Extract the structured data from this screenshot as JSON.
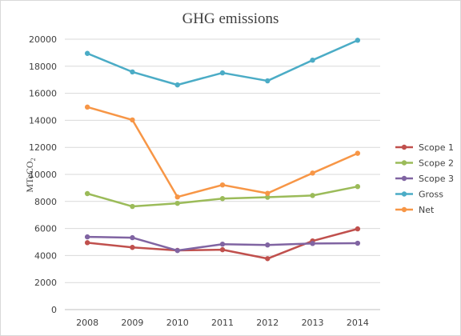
{
  "chart_data": {
    "type": "line",
    "title": "GHG emissions",
    "ylabel_main": "MTeCO",
    "ylabel_sub": "2",
    "xlabel": "",
    "ylim": [
      0,
      20000
    ],
    "yticks": [
      0,
      2000,
      4000,
      6000,
      8000,
      10000,
      12000,
      14000,
      16000,
      18000,
      20000
    ],
    "categories": [
      "2008",
      "2009",
      "2010",
      "2011",
      "2012",
      "2013",
      "2014"
    ],
    "grid": true,
    "legend_position": "right",
    "series": [
      {
        "name": "Scope 1",
        "color": "#c0504d",
        "values": [
          4950,
          4600,
          4380,
          4430,
          3770,
          5080,
          5970
        ]
      },
      {
        "name": "Scope 2",
        "color": "#9bbb59",
        "values": [
          8580,
          7630,
          7860,
          8210,
          8310,
          8440,
          9100
        ]
      },
      {
        "name": "Scope 3",
        "color": "#8064a2",
        "values": [
          5380,
          5320,
          4370,
          4840,
          4780,
          4890,
          4910
        ]
      },
      {
        "name": "Gross",
        "color": "#4bacc6",
        "values": [
          18950,
          17580,
          16620,
          17510,
          16920,
          18450,
          19920
        ]
      },
      {
        "name": "Net",
        "color": "#f79646",
        "values": [
          14980,
          14030,
          8330,
          9220,
          8600,
          10100,
          11560
        ]
      }
    ]
  }
}
